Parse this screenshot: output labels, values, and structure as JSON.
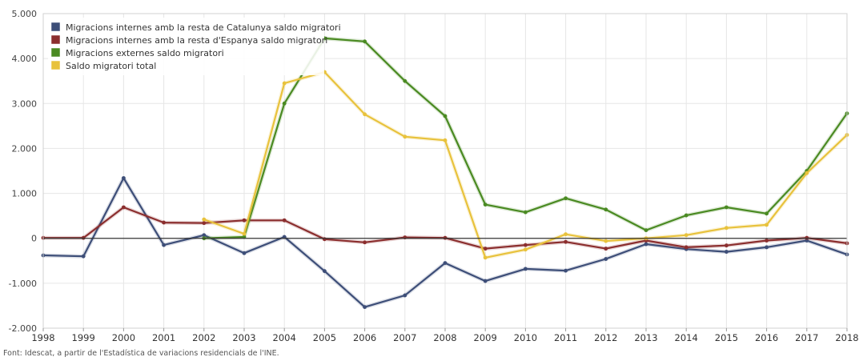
{
  "source_note": "Font: Idescat, a partir de l'Estadística de variacions residencials de l'INE.",
  "chart_data": {
    "type": "line",
    "grid": true,
    "legend_position": "top-left",
    "x": [
      "1998",
      "1999",
      "2000",
      "2001",
      "2002",
      "2003",
      "2004",
      "2005",
      "2006",
      "2007",
      "2008",
      "2009",
      "2010",
      "2011",
      "2012",
      "2013",
      "2014",
      "2015",
      "2016",
      "2017",
      "2018"
    ],
    "ylim": [
      -2000,
      5000
    ],
    "y_ticks": [
      5000,
      4000,
      3000,
      2000,
      1000,
      0,
      -1000,
      -2000
    ],
    "y_tick_labels": [
      "5.000",
      "4.000",
      "3.000",
      "2.000",
      "1.000",
      "0",
      "-1.000",
      "-2.000"
    ],
    "series": [
      {
        "name": "Migracions internes amb la resta de Catalunya saldo migratori",
        "color": "#3d4e78",
        "values": [
          -380,
          -400,
          1340,
          -150,
          70,
          -330,
          30,
          -730,
          -1530,
          -1270,
          -550,
          -950,
          -680,
          -720,
          -460,
          -130,
          -240,
          -300,
          -200,
          -50,
          -360
        ]
      },
      {
        "name": "Migracions internes amb la resta d'Espanya saldo migratori",
        "color": "#8b2e2e",
        "values": [
          10,
          10,
          690,
          350,
          340,
          400,
          400,
          -20,
          -90,
          20,
          10,
          -230,
          -150,
          -80,
          -230,
          -50,
          -200,
          -160,
          -50,
          10,
          -110
        ]
      },
      {
        "name": "Migracions externes saldo migratori",
        "color": "#4a8a22",
        "values": [
          null,
          null,
          null,
          null,
          0,
          30,
          3000,
          4450,
          4380,
          3500,
          2720,
          750,
          580,
          890,
          640,
          180,
          510,
          690,
          550,
          1500,
          2780
        ]
      },
      {
        "name": "Saldo migratori total",
        "color": "#e8c23c",
        "values": [
          null,
          null,
          null,
          null,
          420,
          100,
          3450,
          3700,
          2760,
          2260,
          2180,
          -430,
          -250,
          90,
          -60,
          0,
          70,
          230,
          300,
          1450,
          2300
        ]
      }
    ]
  }
}
